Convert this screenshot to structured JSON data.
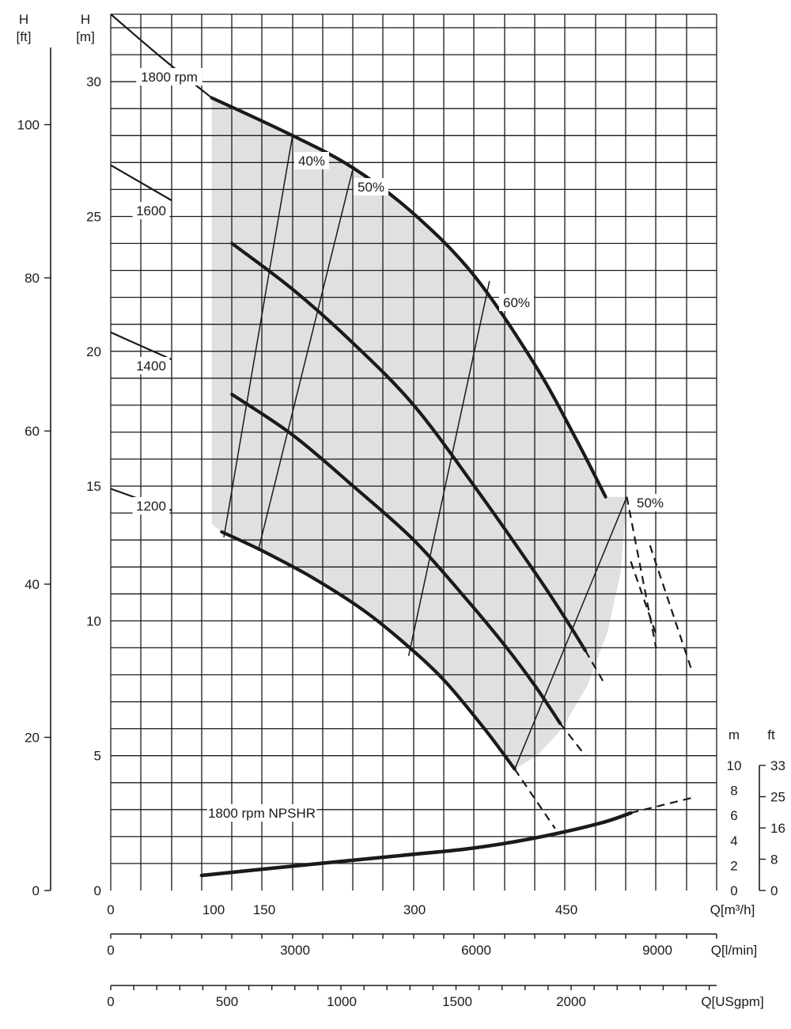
{
  "chart_data": {
    "type": "line",
    "title": "",
    "left_axes": [
      {
        "label_top": "H",
        "label_unit": "[ft]",
        "ticks": [
          "0",
          "20",
          "40",
          "60",
          "80",
          "100"
        ]
      },
      {
        "label_top": "H",
        "label_unit": "[m]",
        "ticks": [
          "0",
          "5",
          "10",
          "15",
          "20",
          "25",
          "30"
        ]
      }
    ],
    "y_range_m": [
      0,
      32.5
    ],
    "npsh_axes": [
      {
        "label": "m",
        "ticks": [
          "0",
          "2",
          "4",
          "6",
          "8",
          "10"
        ]
      },
      {
        "label": "ft",
        "ticks": [
          "0",
          "8",
          "16",
          "25",
          "33"
        ]
      }
    ],
    "x_axes": [
      {
        "label": "Q[m³/h]",
        "ticks": [
          "0",
          "100",
          "150",
          "300",
          "450"
        ]
      },
      {
        "label": "Q[l/min]",
        "ticks": [
          "0",
          "3000",
          "6000",
          "9000"
        ]
      },
      {
        "label": "Q[USgpm]",
        "ticks": [
          "0",
          "500",
          "1000",
          "1500",
          "2000"
        ]
      }
    ],
    "x_range_m3h": [
      0,
      600
    ],
    "grid": true,
    "series": [
      {
        "name": "1800 rpm",
        "x": [
          0,
          50,
          100,
          180,
          240,
          300,
          360,
          420,
          460,
          490,
          515,
          540
        ],
        "y": [
          32.5,
          30.9,
          29.4,
          28.0,
          26.8,
          25.1,
          22.8,
          19.5,
          16.8,
          14.6,
          12.2,
          9.5
        ]
      },
      {
        "name": "1600",
        "x": [
          0,
          60,
          120,
          180,
          240,
          300,
          360,
          420,
          450,
          470,
          490
        ],
        "y": [
          26.9,
          25.6,
          24.0,
          22.3,
          20.3,
          18.0,
          15.0,
          11.8,
          10.1,
          8.9,
          7.6
        ]
      },
      {
        "name": "1400",
        "x": [
          0,
          60,
          120,
          180,
          240,
          300,
          350,
          390,
          420,
          445,
          470
        ],
        "y": [
          20.7,
          19.7,
          18.4,
          16.9,
          15.0,
          13.0,
          10.9,
          9.1,
          7.6,
          6.2,
          5.0
        ]
      },
      {
        "name": "1200",
        "x": [
          0,
          60,
          110,
          150,
          200,
          250,
          290,
          330,
          370,
          400,
          420,
          440
        ],
        "y": [
          14.9,
          14.1,
          13.3,
          12.6,
          11.6,
          10.4,
          9.2,
          7.8,
          6.0,
          4.5,
          3.4,
          2.3
        ]
      },
      {
        "name": "1800 rpm NPSHR",
        "npsh_m": true,
        "x": [
          90,
          150,
          200,
          250,
          300,
          350,
          400,
          450,
          490,
          515,
          540,
          575
        ],
        "y": [
          1.2,
          1.7,
          2.1,
          2.5,
          2.9,
          3.3,
          3.9,
          4.7,
          5.5,
          6.2,
          6.7,
          7.4
        ]
      }
    ],
    "efficiency_lines": [
      {
        "label": "40%",
        "x": [
          180,
          112
        ],
        "y": [
          28.0,
          13.1
        ]
      },
      {
        "label": "50%",
        "x": [
          240,
          146
        ],
        "y": [
          26.8,
          12.6
        ]
      },
      {
        "label": "60%",
        "x": [
          375,
          295
        ],
        "y": [
          22.6,
          8.7
        ]
      },
      {
        "label": "50%",
        "x": [
          511,
          400
        ],
        "y": [
          14.6,
          4.5
        ]
      }
    ],
    "curve_labels": [
      "1800 rpm",
      "1600",
      "1400",
      "1200",
      "1800 rpm NPSHR"
    ],
    "efficiency_labels": [
      "40%",
      "50%",
      "60%",
      "50%"
    ],
    "shade_color": "#e0e0e0",
    "line_color": "#1a1a1a"
  }
}
